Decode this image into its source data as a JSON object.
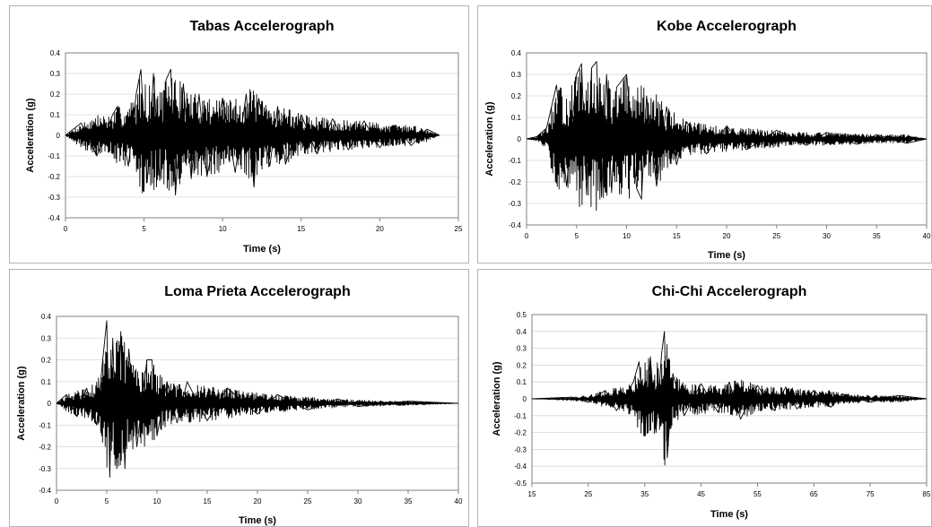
{
  "chart_data": [
    {
      "type": "line",
      "title": "Tabas Accelerograph",
      "xlabel": "Time (s)",
      "ylabel": "Acceleration (g)",
      "xlim": [
        0,
        25
      ],
      "ylim": [
        -0.4,
        0.4
      ],
      "xticks": [
        0,
        5,
        10,
        15,
        20,
        25
      ],
      "yticks": [
        -0.4,
        -0.3,
        -0.2,
        -0.1,
        0,
        0.1,
        0.2,
        0.3,
        0.4
      ],
      "x_tick_labels": [
        "0",
        "5",
        "10",
        "15",
        "20",
        "25"
      ],
      "y_tick_labels": [
        "-0.4",
        "-0.3",
        "-0.2",
        "-0.1",
        "0",
        "0.1",
        "0.2",
        "0.3",
        "0.4"
      ],
      "grid": "horizontal",
      "series": [
        {
          "x": [
            0,
            1,
            2,
            3,
            3.3,
            4,
            4.5,
            4.8,
            5.2,
            5.6,
            6,
            6.4,
            6.7,
            7,
            7.5,
            8,
            8.5,
            9,
            10,
            10.8,
            11.5,
            12,
            12.3,
            13,
            13.5,
            14,
            15,
            16,
            17,
            18,
            19,
            20,
            21,
            22,
            23,
            23.8
          ],
          "y": [
            0,
            0.06,
            -0.1,
            0.1,
            0.14,
            -0.15,
            0.2,
            0.32,
            -0.23,
            0.3,
            -0.22,
            0.27,
            0.32,
            -0.29,
            0.25,
            -0.21,
            0.2,
            -0.2,
            0.18,
            -0.18,
            0.2,
            -0.25,
            0.18,
            -0.15,
            0.14,
            -0.14,
            0.1,
            -0.09,
            0.08,
            -0.07,
            0.07,
            -0.06,
            0.05,
            -0.05,
            0.03,
            0
          ]
        }
      ]
    },
    {
      "type": "line",
      "title": "Kobe Accelerograph",
      "xlabel": "Time (s)",
      "ylabel": "Acceleration (g)",
      "xlim": [
        0,
        40
      ],
      "ylim": [
        -0.4,
        0.4
      ],
      "xticks": [
        0,
        5,
        10,
        15,
        20,
        25,
        30,
        35,
        40
      ],
      "yticks": [
        -0.4,
        -0.3,
        -0.2,
        -0.1,
        0,
        0.1,
        0.2,
        0.3,
        0.4
      ],
      "x_tick_labels": [
        "0",
        "5",
        "10",
        "15",
        "20",
        "25",
        "30",
        "35",
        "40"
      ],
      "y_tick_labels": [
        "-0.4",
        "-0.3",
        "-0.2",
        "-0.1",
        "0",
        "0.1",
        "0.2",
        "0.3",
        "0.4"
      ],
      "grid": "horizontal",
      "series": [
        {
          "x": [
            0,
            1,
            2,
            3,
            4,
            5,
            5.5,
            6,
            6.5,
            7,
            7.5,
            8,
            8.5,
            9,
            10,
            11,
            11.5,
            12,
            13,
            14,
            15,
            16,
            18,
            20,
            22,
            25,
            28,
            30,
            33,
            35,
            38,
            40
          ],
          "y": [
            0,
            0.01,
            0.05,
            0.25,
            -0.22,
            0.3,
            0.35,
            -0.26,
            0.33,
            0.36,
            -0.27,
            0.3,
            -0.25,
            0.24,
            0.3,
            -0.23,
            -0.28,
            0.2,
            -0.22,
            0.15,
            -0.12,
            0.08,
            -0.07,
            0.06,
            -0.05,
            0.04,
            -0.03,
            0.03,
            -0.025,
            0.02,
            -0.02,
            0
          ]
        }
      ]
    },
    {
      "type": "line",
      "title": "Loma Prieta Accelerograph",
      "xlabel": "Time (s)",
      "ylabel": "Acceleration (g)",
      "xlim": [
        0,
        40
      ],
      "ylim": [
        -0.4,
        0.4
      ],
      "xticks": [
        0,
        5,
        10,
        15,
        20,
        25,
        30,
        35,
        40
      ],
      "yticks": [
        -0.4,
        -0.3,
        -0.2,
        -0.1,
        0,
        0.1,
        0.2,
        0.3,
        0.4
      ],
      "x_tick_labels": [
        "0",
        "5",
        "10",
        "15",
        "20",
        "25",
        "30",
        "35",
        "40"
      ],
      "y_tick_labels": [
        "-0.4",
        "-0.3",
        "-0.2",
        "-0.1",
        "0",
        "0.1",
        "0.2",
        "0.3",
        "0.4"
      ],
      "grid": "horizontal",
      "series": [
        {
          "x": [
            0,
            1,
            2,
            3,
            4,
            4.6,
            5,
            5.3,
            5.6,
            6,
            6.4,
            6.8,
            7.2,
            8,
            9,
            9.5,
            10,
            11,
            12,
            13,
            15,
            17,
            20,
            22,
            25,
            28,
            30,
            35,
            40
          ],
          "y": [
            0,
            0.04,
            -0.06,
            0.07,
            -0.1,
            0.2,
            0.38,
            -0.34,
            0.3,
            -0.3,
            0.33,
            -0.3,
            0.25,
            -0.2,
            0.2,
            0.2,
            -0.15,
            0.1,
            -0.09,
            0.1,
            -0.08,
            0.07,
            -0.05,
            0.04,
            -0.03,
            0.02,
            -0.015,
            0.01,
            0
          ]
        }
      ]
    },
    {
      "type": "line",
      "title": "Chi-Chi Accelerograph",
      "xlabel": "Time (s)",
      "ylabel": "Acceleration (g)",
      "xlim": [
        15,
        85
      ],
      "ylim": [
        -0.5,
        0.5
      ],
      "xticks": [
        15,
        25,
        35,
        45,
        55,
        65,
        75,
        85
      ],
      "yticks": [
        -0.5,
        -0.4,
        -0.3,
        -0.2,
        -0.1,
        0,
        0.1,
        0.2,
        0.3,
        0.4,
        0.5
      ],
      "x_tick_labels": [
        "15",
        "25",
        "35",
        "45",
        "55",
        "65",
        "75",
        "85"
      ],
      "y_tick_labels": [
        "-0.5",
        "-0.4",
        "-0.3",
        "-0.2",
        "-0.1",
        "0",
        "0.1",
        "0.2",
        "0.3",
        "0.4",
        "0.5"
      ],
      "grid": "horizontal",
      "series": [
        {
          "x": [
            15,
            22,
            25,
            28,
            30,
            33,
            34,
            35,
            36,
            37,
            38,
            38.5,
            39,
            40,
            42,
            45,
            48,
            50,
            52,
            55,
            58,
            60,
            62,
            65,
            68,
            70,
            75,
            80,
            85
          ],
          "y": [
            0,
            0.01,
            -0.02,
            0.05,
            -0.07,
            0.1,
            0.22,
            -0.22,
            0.25,
            -0.2,
            0.27,
            0.4,
            -0.35,
            0.15,
            -0.1,
            0.09,
            -0.08,
            0.1,
            -0.12,
            0.08,
            -0.07,
            0.07,
            -0.06,
            0.05,
            -0.05,
            0.03,
            -0.02,
            0.02,
            0
          ]
        }
      ]
    }
  ]
}
